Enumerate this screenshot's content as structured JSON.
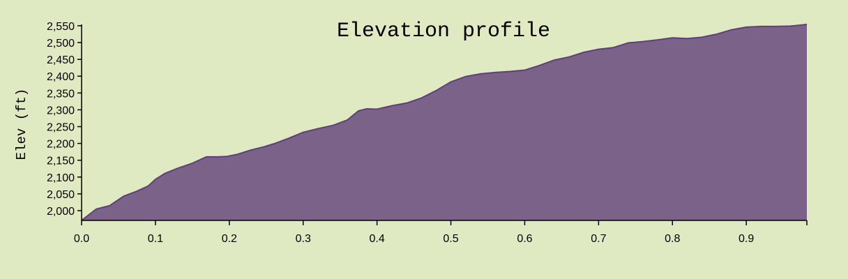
{
  "chart_data": {
    "type": "area",
    "title": "Elevation profile",
    "xlabel": "",
    "ylabel": "Elev (ft)",
    "xlim": [
      0.0,
      0.982
    ],
    "ylim": [
      1971,
      2554
    ],
    "grid": false,
    "colors": {
      "fill": "#7b6289",
      "stroke": "#5f3f7a",
      "background": "#dfeac2"
    },
    "x_ticks": [
      0.0,
      0.1,
      0.2,
      0.3,
      0.4,
      0.5,
      0.6,
      0.7,
      0.8,
      0.9
    ],
    "x_tick_labels": [
      "0.0",
      "0.1",
      "0.2",
      "0.3",
      "0.4",
      "0.5",
      "0.6",
      "0.7",
      "0.8",
      "0.9"
    ],
    "y_ticks": [
      2000,
      2050,
      2100,
      2150,
      2200,
      2250,
      2300,
      2350,
      2400,
      2450,
      2500,
      2550
    ],
    "y_tick_labels": [
      "2,000",
      "2,050",
      "2,100",
      "2,150",
      "2,200",
      "2,250",
      "2,300",
      "2,350",
      "2,400",
      "2,450",
      "2,500",
      "2,550"
    ],
    "x": [
      0.0,
      0.02,
      0.038,
      0.057,
      0.075,
      0.09,
      0.1,
      0.113,
      0.13,
      0.15,
      0.169,
      0.185,
      0.196,
      0.21,
      0.229,
      0.247,
      0.262,
      0.28,
      0.3,
      0.32,
      0.341,
      0.36,
      0.375,
      0.386,
      0.4,
      0.42,
      0.44,
      0.46,
      0.48,
      0.5,
      0.52,
      0.54,
      0.56,
      0.58,
      0.6,
      0.62,
      0.64,
      0.66,
      0.68,
      0.7,
      0.72,
      0.74,
      0.76,
      0.78,
      0.8,
      0.82,
      0.84,
      0.86,
      0.88,
      0.9,
      0.92,
      0.94,
      0.96,
      0.982
    ],
    "y": [
      1971,
      2005,
      2015,
      2043,
      2058,
      2073,
      2093,
      2111,
      2126,
      2141,
      2160,
      2160,
      2161,
      2167,
      2180,
      2190,
      2200,
      2215,
      2233,
      2244,
      2254,
      2270,
      2297,
      2303,
      2302,
      2312,
      2320,
      2335,
      2357,
      2383,
      2399,
      2407,
      2411,
      2414,
      2418,
      2432,
      2448,
      2457,
      2471,
      2480,
      2485,
      2499,
      2503,
      2508,
      2514,
      2512,
      2516,
      2525,
      2538,
      2546,
      2548,
      2548,
      2549,
      2554
    ]
  }
}
